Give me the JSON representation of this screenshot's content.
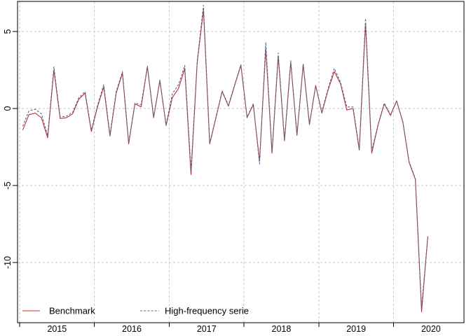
{
  "figure": {
    "background_color": "#ffffff",
    "border_color": "#000000",
    "title": ""
  },
  "chart_data": {
    "type": "line",
    "title": "",
    "xlabel": "",
    "ylabel": "",
    "frequency": "monthly",
    "start": "2015-01",
    "end": "2020-06",
    "x_tick_years": [
      2015,
      2016,
      2017,
      2018,
      2019,
      2020
    ],
    "y_ticks": [
      5,
      0,
      -5,
      -10
    ],
    "ylim": [
      -13.9,
      7.0
    ],
    "grid": {
      "show": true,
      "color": "#c6c6c6",
      "style": "dashed"
    },
    "legend_position": "bottom-left",
    "series": [
      {
        "name": "Benchmark",
        "color": "#cc2b2b",
        "style": "solid",
        "values": [
          -1.4,
          -0.4,
          -0.3,
          -0.6,
          -1.9,
          2.5,
          -0.65,
          -0.6,
          -0.35,
          0.6,
          1.0,
          -1.5,
          0.1,
          1.4,
          -1.8,
          1.0,
          2.3,
          -2.3,
          0.3,
          0.1,
          2.7,
          -0.6,
          1.8,
          -1.1,
          0.7,
          1.3,
          2.6,
          -4.3,
          3.0,
          6.4,
          -2.3,
          -0.6,
          1.1,
          0.15,
          1.5,
          2.8,
          -0.6,
          0.25,
          -3.4,
          3.9,
          -2.9,
          3.4,
          -2.1,
          3.0,
          -1.75,
          2.85,
          -1.05,
          1.5,
          -0.3,
          1.2,
          2.4,
          1.6,
          -0.1,
          0.0,
          -2.7,
          5.5,
          -2.9,
          -1.1,
          0.3,
          -0.45,
          0.5,
          -0.9,
          -3.5,
          -4.6,
          -13.2,
          -8.3
        ]
      },
      {
        "name": "High-frequency serie",
        "color": "#3d6fa5",
        "style": "dashed",
        "values": [
          -1.15,
          -0.15,
          -0.05,
          -0.35,
          -1.75,
          2.7,
          -0.55,
          -0.5,
          -0.25,
          0.7,
          1.1,
          -1.4,
          0.2,
          1.55,
          -1.7,
          1.1,
          2.4,
          -2.2,
          0.35,
          0.25,
          2.75,
          -0.55,
          1.85,
          -1.05,
          0.95,
          1.55,
          2.8,
          -4.0,
          3.1,
          6.7,
          -2.25,
          -0.55,
          1.15,
          0.2,
          1.55,
          2.85,
          -0.55,
          0.3,
          -3.6,
          4.3,
          -2.85,
          3.6,
          -2.05,
          3.1,
          -1.7,
          2.9,
          -1.0,
          1.45,
          -0.2,
          1.3,
          2.6,
          1.7,
          0.1,
          0.1,
          -2.6,
          5.85,
          -2.75,
          -1.05,
          0.35,
          -0.4,
          0.45,
          -0.85,
          -3.45,
          -4.55,
          -12.9,
          -8.3
        ]
      }
    ]
  }
}
